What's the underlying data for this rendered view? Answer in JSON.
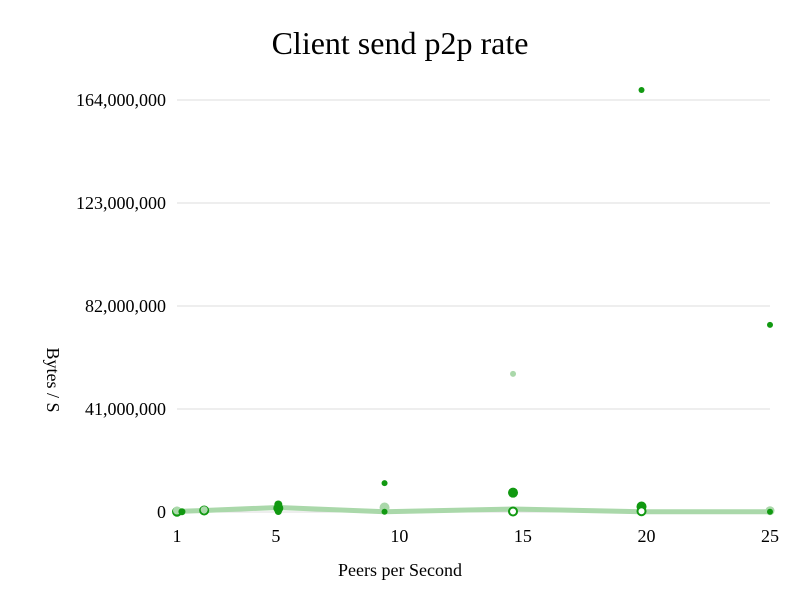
{
  "chart_data": {
    "type": "scatter",
    "title": "Client send p2p rate",
    "xlabel": "Peers per Second",
    "ylabel": "Bytes / S",
    "xlim": [
      1,
      25
    ],
    "ylim": [
      0,
      164000000
    ],
    "x_ticks": [
      1,
      5,
      10,
      15,
      20,
      25
    ],
    "x_tick_labels": [
      "1",
      "5",
      "10",
      "15",
      "20",
      "25"
    ],
    "y_ticks": [
      0,
      41000000,
      82000000,
      123000000,
      164000000
    ],
    "y_tick_labels": [
      "0",
      "41,000,000",
      "82,000,000",
      "123,000,000",
      "164,000,000"
    ],
    "grid": true,
    "legend": "none",
    "colors": {
      "dark": "#119911",
      "light": "#aad8aa",
      "trend": "#aad8aa"
    },
    "trend_line": {
      "x": [
        1,
        1.2,
        2.1,
        5.1,
        9.4,
        14.6,
        19.8,
        25
      ],
      "y": [
        200000,
        300000,
        600000,
        1800000,
        100000,
        1200000,
        100000,
        100000
      ]
    },
    "points": [
      {
        "x": 1,
        "y": 100000,
        "shade": "dark",
        "r": 5,
        "hollow": false
      },
      {
        "x": 1,
        "y": 600000,
        "shade": "light",
        "r": 4,
        "hollow": false
      },
      {
        "x": 1.2,
        "y": 100000,
        "shade": "dark",
        "r": 3.5,
        "hollow": false
      },
      {
        "x": 2.1,
        "y": 600000,
        "shade": "dark",
        "r": 4,
        "hollow": true
      },
      {
        "x": 2.1,
        "y": 900000,
        "shade": "light",
        "r": 3.5,
        "hollow": false
      },
      {
        "x": 5.1,
        "y": 3000000,
        "shade": "dark",
        "r": 4,
        "hollow": false
      },
      {
        "x": 5.1,
        "y": 1500000,
        "shade": "dark",
        "r": 5,
        "hollow": false
      },
      {
        "x": 5.1,
        "y": 200000,
        "shade": "dark",
        "r": 3.5,
        "hollow": false
      },
      {
        "x": 9.4,
        "y": 11500000,
        "shade": "dark",
        "r": 3,
        "hollow": false
      },
      {
        "x": 9.4,
        "y": 1800000,
        "shade": "light",
        "r": 5,
        "hollow": false
      },
      {
        "x": 9.4,
        "y": 100000,
        "shade": "dark",
        "r": 3,
        "hollow": false
      },
      {
        "x": 14.6,
        "y": 55000000,
        "shade": "light",
        "r": 3,
        "hollow": false
      },
      {
        "x": 14.6,
        "y": 7700000,
        "shade": "dark",
        "r": 5,
        "hollow": false
      },
      {
        "x": 14.6,
        "y": 200000,
        "shade": "dark",
        "r": 4,
        "hollow": true
      },
      {
        "x": 19.8,
        "y": 168000000,
        "shade": "dark",
        "r": 3,
        "hollow": false
      },
      {
        "x": 19.8,
        "y": 2200000,
        "shade": "dark",
        "r": 5,
        "hollow": false
      },
      {
        "x": 19.8,
        "y": 300000,
        "shade": "dark",
        "r": 4,
        "hollow": true
      },
      {
        "x": 25,
        "y": 74500000,
        "shade": "dark",
        "r": 3,
        "hollow": false
      },
      {
        "x": 25,
        "y": 500000,
        "shade": "light",
        "r": 4.5,
        "hollow": false
      },
      {
        "x": 25,
        "y": 100000,
        "shade": "dark",
        "r": 3,
        "hollow": false
      }
    ]
  }
}
